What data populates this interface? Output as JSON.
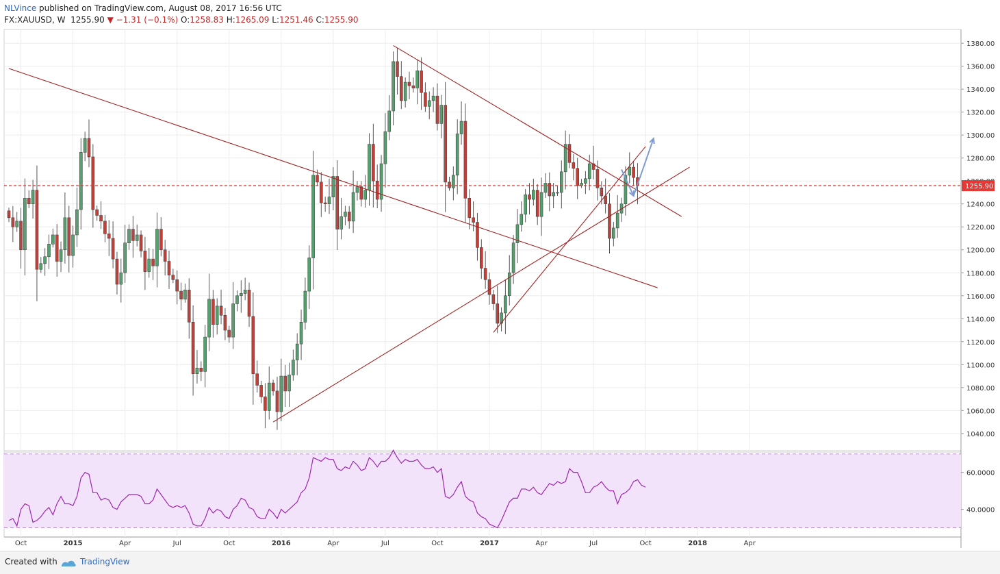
{
  "header": {
    "user": "NLVince",
    "published_text": " published on TradingView.com, August 08, 2017 16:56 UTC",
    "symbol": "FX:XAUUSD, W",
    "last": "1255.90",
    "change": "−1.31 (−0.1%)",
    "open_label": "O:",
    "open": "1258.83",
    "high_label": "H:",
    "high": "1265.09",
    "low_label": "L:",
    "low": "1251.46",
    "close_label": "C:",
    "close": "1255.90"
  },
  "footer": {
    "created": "Created with",
    "brand": "TradingView"
  },
  "colors": {
    "up": "#53a26d",
    "down": "#c0413a",
    "line": "#a12424",
    "price_line": "#e53935",
    "rsi_line": "#9c27b0",
    "rsi_band": "#f3e3fa",
    "arrow": "#7f9bd4"
  },
  "chart_data": [
    {
      "type": "candlestick",
      "interval": "W",
      "ylim": [
        1025,
        1392
      ],
      "yticks": [
        "1380.00",
        "1360.00",
        "1340.00",
        "1320.00",
        "1300.00",
        "1280.00",
        "1260.00",
        "1240.00",
        "1220.00",
        "1200.00",
        "1180.00",
        "1160.00",
        "1140.00",
        "1120.00",
        "1100.00",
        "1080.00",
        "1060.00",
        "1040.00"
      ],
      "ytick_values": [
        1380,
        1360,
        1340,
        1320,
        1300,
        1280,
        1260,
        1240,
        1220,
        1200,
        1180,
        1160,
        1140,
        1120,
        1100,
        1080,
        1060,
        1040
      ],
      "price_label": "1255.90",
      "price_level": 1255.9,
      "xticks": [
        {
          "label": "Oct",
          "index": 3,
          "bold": false
        },
        {
          "label": "2015",
          "index": 16,
          "bold": true
        },
        {
          "label": "Apr",
          "index": 29,
          "bold": false
        },
        {
          "label": "Jul",
          "index": 42,
          "bold": false
        },
        {
          "label": "Oct",
          "index": 55,
          "bold": false
        },
        {
          "label": "2016",
          "index": 68,
          "bold": true
        },
        {
          "label": "Apr",
          "index": 81,
          "bold": false
        },
        {
          "label": "Jul",
          "index": 94,
          "bold": false
        },
        {
          "label": "Oct",
          "index": 107,
          "bold": false
        },
        {
          "label": "2017",
          "index": 120,
          "bold": true
        },
        {
          "label": "Apr",
          "index": 133,
          "bold": false
        },
        {
          "label": "Jul",
          "index": 146,
          "bold": false
        },
        {
          "label": "Oct",
          "index": 159,
          "bold": false
        },
        {
          "label": "2018",
          "index": 172,
          "bold": true
        },
        {
          "label": "Apr",
          "index": 185,
          "bold": false
        }
      ],
      "close": [
        1228,
        1220,
        1225,
        1200,
        1245,
        1240,
        1252,
        1183,
        1188,
        1194,
        1205,
        1213,
        1190,
        1200,
        1228,
        1195,
        1213,
        1235,
        1285,
        1297,
        1281,
        1235,
        1230,
        1225,
        1214,
        1210,
        1192,
        1170,
        1180,
        1206,
        1218,
        1208,
        1213,
        1199,
        1181,
        1192,
        1186,
        1218,
        1200,
        1190,
        1178,
        1174,
        1164,
        1157,
        1165,
        1137,
        1092,
        1097,
        1094,
        1124,
        1157,
        1135,
        1151,
        1143,
        1130,
        1124,
        1153,
        1160,
        1162,
        1165,
        1142,
        1092,
        1082,
        1072,
        1060,
        1084,
        1077,
        1059,
        1090,
        1077,
        1091,
        1104,
        1118,
        1137,
        1164,
        1193,
        1265,
        1259,
        1241,
        1240,
        1246,
        1264,
        1218,
        1229,
        1233,
        1225,
        1250,
        1255,
        1244,
        1252,
        1292,
        1260,
        1244,
        1275,
        1303,
        1321,
        1364,
        1351,
        1330,
        1346,
        1343,
        1341,
        1356,
        1337,
        1325,
        1330,
        1334,
        1310,
        1326,
        1259,
        1254,
        1265,
        1301,
        1312,
        1245,
        1228,
        1224,
        1202,
        1184,
        1174,
        1161,
        1153,
        1136,
        1145,
        1160,
        1180,
        1206,
        1222,
        1231,
        1248,
        1244,
        1252,
        1229,
        1250,
        1258,
        1247,
        1250,
        1250,
        1268,
        1292,
        1276,
        1271,
        1256,
        1258,
        1262,
        1275,
        1270,
        1254,
        1247,
        1240,
        1210,
        1219,
        1232,
        1240,
        1265,
        1272,
        1263,
        1256
      ],
      "ohlc_note": "open = previous close; high/low extend beyond body",
      "trendlines": [
        {
          "from": {
            "index": 0,
            "price": 1358
          },
          "to": {
            "index": 162,
            "price": 1167
          }
        },
        {
          "from": {
            "index": 66,
            "price": 1050
          },
          "to": {
            "index": 170,
            "price": 1272
          }
        },
        {
          "from": {
            "index": 96,
            "price": 1378
          },
          "to": {
            "index": 168,
            "price": 1229
          }
        },
        {
          "from": {
            "index": 121,
            "price": 1128
          },
          "to": {
            "index": 159,
            "price": 1290
          }
        }
      ],
      "arrows": [
        {
          "from": {
            "index": 153,
            "price": 1270
          },
          "to": {
            "index": 156,
            "price": 1247
          }
        },
        {
          "from": {
            "index": 156,
            "price": 1247
          },
          "to": {
            "index": 161,
            "price": 1297
          }
        }
      ]
    },
    {
      "type": "line",
      "indicator": "RSI",
      "ylim": [
        25,
        71
      ],
      "yticks": [
        "60.0000",
        "40.0000"
      ],
      "ytick_values": [
        60,
        40
      ],
      "band": [
        30,
        70
      ],
      "values": [
        34,
        35,
        31,
        40,
        43,
        42,
        33,
        34,
        36,
        39,
        41,
        37,
        43,
        47,
        43,
        43,
        42,
        47,
        57,
        60,
        59,
        49,
        49,
        45,
        46,
        45,
        41,
        40,
        44,
        46,
        48,
        48,
        48,
        47,
        43,
        43,
        45,
        51,
        48,
        45,
        42,
        41,
        42,
        41,
        42,
        38,
        32,
        31,
        31,
        35,
        41,
        38,
        40,
        39,
        36,
        35,
        40,
        42,
        46,
        45,
        41,
        40,
        36,
        35,
        35,
        40,
        38,
        35,
        40,
        38,
        40,
        42,
        44,
        49,
        51,
        57,
        68,
        67,
        66,
        68,
        67,
        67,
        62,
        61,
        63,
        62,
        66,
        64,
        61,
        62,
        68,
        66,
        63,
        66,
        66,
        68,
        72,
        68,
        65,
        67,
        66,
        66,
        67,
        64,
        62,
        62,
        63,
        60,
        62,
        47,
        46,
        48,
        52,
        55,
        47,
        45,
        44,
        38,
        36,
        35,
        32,
        31,
        30,
        34,
        39,
        44,
        46,
        46,
        51,
        51,
        50,
        52,
        49,
        48,
        51,
        54,
        53,
        55,
        54,
        55,
        62,
        60,
        60,
        55,
        49,
        49,
        52,
        53,
        55,
        52,
        50,
        50,
        43,
        48,
        49,
        51,
        55,
        56,
        53,
        52
      ]
    }
  ]
}
